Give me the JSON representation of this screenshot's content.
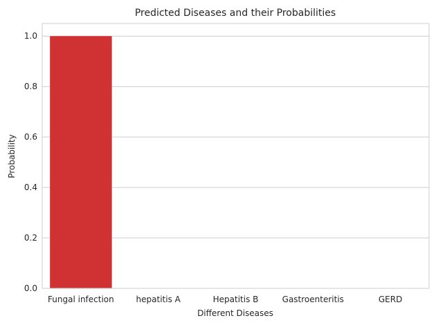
{
  "chart_data": {
    "type": "bar",
    "title": "Predicted Diseases and their Probabilities",
    "xlabel": "Different Diseases",
    "ylabel": "Probability",
    "categories": [
      "Fungal infection",
      "hepatitis A",
      "Hepatitis B",
      "Gastroenteritis",
      "GERD"
    ],
    "values": [
      1.0,
      0.0,
      0.0,
      0.0,
      0.0
    ],
    "ylim": [
      0,
      1.05
    ],
    "yticks": [
      0.0,
      0.2,
      0.4,
      0.6,
      0.8,
      1.0
    ],
    "ytick_labels": [
      "0.0",
      "0.2",
      "0.4",
      "0.6",
      "0.8",
      "1.0"
    ],
    "grid": true,
    "bar_color": "#d03234",
    "grid_color": "#cccccc",
    "frame_color": "#cccccc"
  }
}
